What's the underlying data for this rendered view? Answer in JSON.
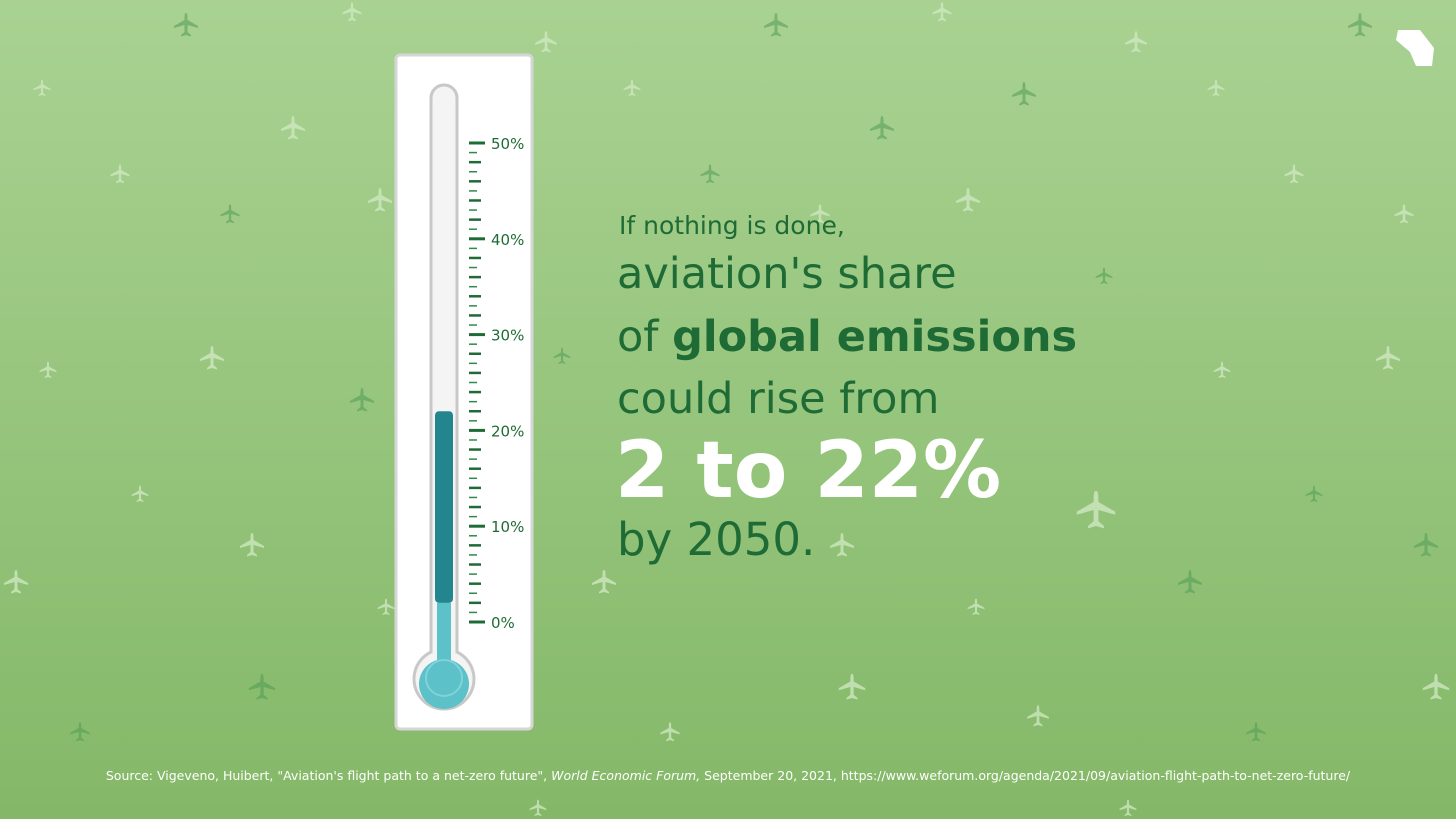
{
  "chart_data": {
    "type": "thermometer",
    "headline": {
      "intro": "If nothing is done,",
      "line1": "aviation's share",
      "line2_pre": "of",
      "line2_bold": "global emissions",
      "line3": "could rise from",
      "highlight": "2 to 22%",
      "line4": "by 2050."
    },
    "values": [
      2,
      22
    ],
    "colors": [
      "#5cc1c9",
      "#23868e"
    ],
    "ylim": [
      0,
      50
    ],
    "yticks": [
      {
        "value": 0,
        "label": "0%"
      },
      {
        "value": 10,
        "label": "10%"
      },
      {
        "value": 20,
        "label": "20%"
      },
      {
        "value": 30,
        "label": "30%"
      },
      {
        "value": 40,
        "label": "40%"
      },
      {
        "value": 50,
        "label": "50%"
      }
    ],
    "source": {
      "prefix": "Source:  Vigeveno, Huibert, \"Aviation's flight path to a net-zero future\",",
      "publication": "World Economic Forum,",
      "suffix": "September 20, 2021, https://www.weforum.org/agenda/2021/09/aviation-flight-path-to-net-zero-future/"
    }
  }
}
